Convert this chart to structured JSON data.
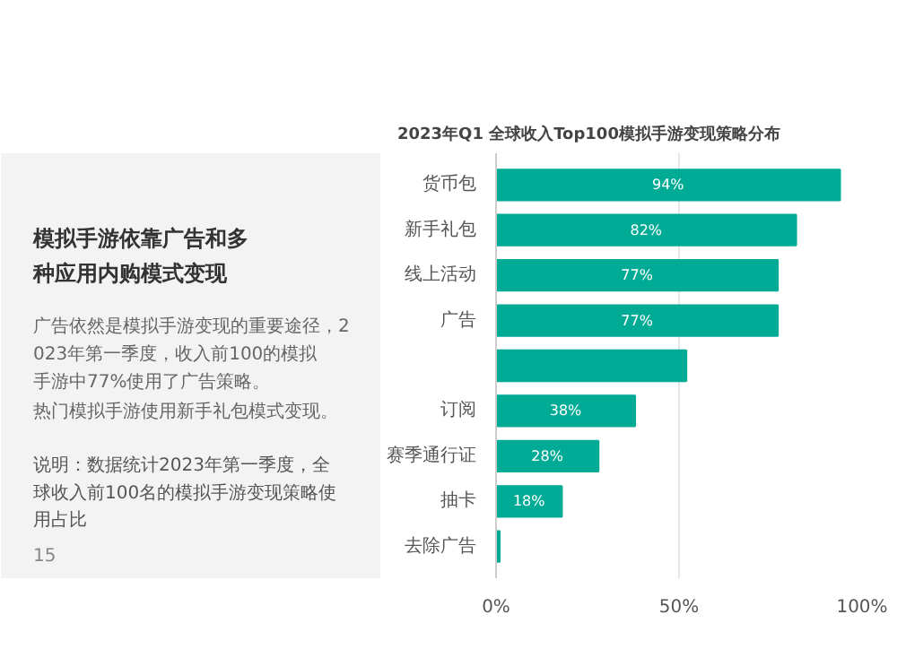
{
  "chart_data": {
    "type": "bar",
    "orientation": "horizontal",
    "title": "2023年Q1 全球收入Top100模拟手游变现策略分布",
    "categories": [
      "货币包",
      "新手礼包",
      "线上活动",
      "广告",
      null,
      "订阅",
      "赛季通行证",
      "抽卡",
      "去除广告"
    ],
    "values": [
      94,
      82,
      77,
      77,
      52,
      38,
      28,
      18,
      1
    ],
    "value_labels": [
      "94%",
      "82%",
      "77%",
      "77%",
      null,
      "38%",
      "28%",
      "18%",
      null
    ],
    "color": "#00ab96",
    "xlim": [
      0,
      100
    ],
    "xticks": [
      {
        "value": 0,
        "label": "0%"
      },
      {
        "value": 50,
        "label": "50%"
      },
      {
        "value": 100,
        "label": "100%"
      }
    ],
    "grid": "x",
    "annotations": [
      "模拟手游依靠广告和多种应用内购模式变现",
      "广告依然是模拟手游变现的重要途径，2023年第一季度，收入前100的模拟手游中77%使用了广告策略。",
      "热门模拟手游使用新手礼包模式变现。",
      "说明：数据统计2023年第一季度，全球收入前100名的模拟手游变现策略使用占比",
      "15"
    ]
  }
}
